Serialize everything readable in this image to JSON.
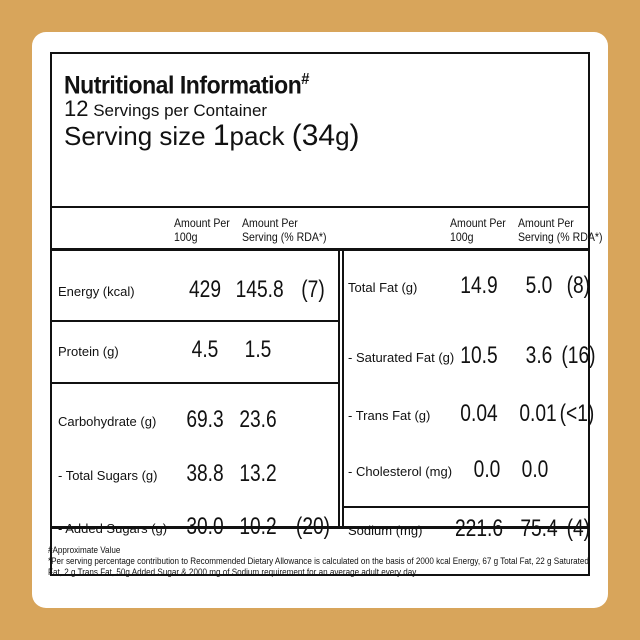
{
  "header": {
    "title": "Nutritional Information",
    "title_mark": "#",
    "servings_count": "12",
    "servings_text": "Servings per Container",
    "size_prefix": "Serving size",
    "size_num": "1",
    "size_unit": "pack",
    "size_grams_open": "(34",
    "size_grams_g": "g",
    "size_grams_close": ")"
  },
  "columns": {
    "per100_line1": "Amount Per",
    "per100_line2": "100g",
    "serving_line1": "Amount Per",
    "serving_line2": "Serving (% RDA*)"
  },
  "left_rows": [
    {
      "label": "Energy (kcal)",
      "per100": "429",
      "serving": "145.8",
      "rda": "(7)"
    },
    {
      "label": "Protein (g)",
      "per100": "4.5",
      "serving": "1.5",
      "rda": ""
    },
    {
      "label": "Carbohydrate (g)",
      "per100": "69.3",
      "serving": "23.6",
      "rda": ""
    },
    {
      "label": "- Total Sugars (g)",
      "per100": "38.8",
      "serving": "13.2",
      "rda": ""
    },
    {
      "label": "- Added Sugars (g)",
      "per100": "30.0",
      "serving": "10.2",
      "rda": "(20)"
    }
  ],
  "right_rows": [
    {
      "label": "Total Fat (g)",
      "per100": "14.9",
      "serving": "5.0",
      "rda": "(8)"
    },
    {
      "label": "- Saturated Fat (g)",
      "per100": "10.5",
      "serving": "3.6",
      "rda": "(16)"
    },
    {
      "label": "- Trans Fat (g)",
      "per100": "0.04",
      "serving": "0.01",
      "rda": "(<1)"
    },
    {
      "label": "- Cholesterol (mg)",
      "per100": "0.0",
      "serving": "0.0",
      "rda": ""
    },
    {
      "label": "Sodium (mg)",
      "per100": "221.6",
      "serving": "75.4",
      "rda": "(4)"
    }
  ],
  "footnotes": {
    "line1": "#Approximate Value",
    "line2": "*Per serving percentage contribution to Recommended Dietary Allowance is calculated on the basis of 2000 kcal Energy, 67 g Total Fat, 22 g Saturated",
    "line3": "Fat, 2 g Trans Fat, 50g Added Sugar & 2000 mg of Sodium requirement for an average adult every day."
  },
  "colors": {
    "background": "#d8a55b",
    "card": "#ffffff",
    "ink": "#111111"
  }
}
